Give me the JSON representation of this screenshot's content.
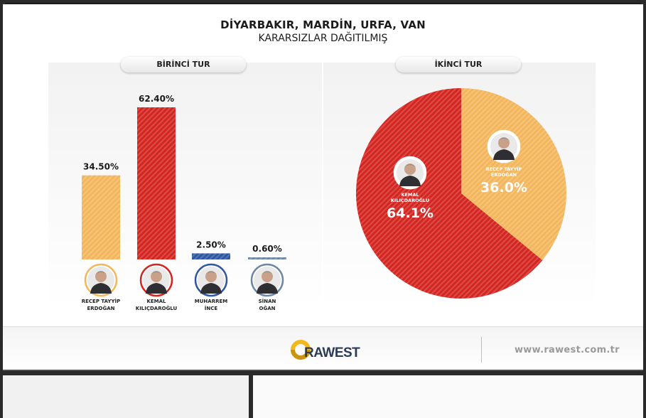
{
  "header": {
    "title": "DİYARBAKIR, MARDİN, URFA, VAN",
    "subtitle": "KARARSIZLAR DAĞITILMIŞ"
  },
  "panels": {
    "left_label": "BİRİNCİ TUR",
    "right_label": "İKİNCİ TUR"
  },
  "footer": {
    "logo_text": "RAWEST",
    "website": "www.rawest.com.tr"
  },
  "colors": {
    "erdogan": "#f3b65c",
    "kilicdaroglu": "#d42621",
    "ince": "#2f58a4",
    "ogan": "#6e86a6"
  },
  "chart_data": [
    {
      "type": "bar",
      "title": "BİRİNCİ TUR",
      "categories": [
        "RECEP TAYYİP ERDOĞAN",
        "KEMAL KILIÇDAROĞLU",
        "MUHARREM İNCE",
        "SİNAN OĞAN"
      ],
      "category_lines": [
        [
          "RECEP TAYYİP",
          "ERDOĞAN"
        ],
        [
          "KEMAL",
          "KILIÇDAROĞLU"
        ],
        [
          "MUHARREM",
          "İNCE"
        ],
        [
          "SİNAN",
          "OĞAN"
        ]
      ],
      "values": [
        34.5,
        62.4,
        2.5,
        0.6
      ],
      "value_labels": [
        "34.50%",
        "62.40%",
        "2.50%",
        "0.60%"
      ],
      "colors": [
        "#f3b65c",
        "#d42621",
        "#2f58a4",
        "#6e86a6"
      ],
      "ylim": [
        0,
        62.4
      ],
      "grid": false
    },
    {
      "type": "pie",
      "title": "İKİNCİ TUR",
      "slices": [
        {
          "label_lines": [
            "RECEP TAYYİP",
            "ERDOĞAN"
          ],
          "value": 36.0,
          "value_label": "36.0%",
          "color": "#f3b65c"
        },
        {
          "label_lines": [
            "KEMAL",
            "KILIÇDAROĞLU"
          ],
          "value": 64.1,
          "value_label": "64.1%",
          "color": "#d42621"
        }
      ]
    }
  ]
}
